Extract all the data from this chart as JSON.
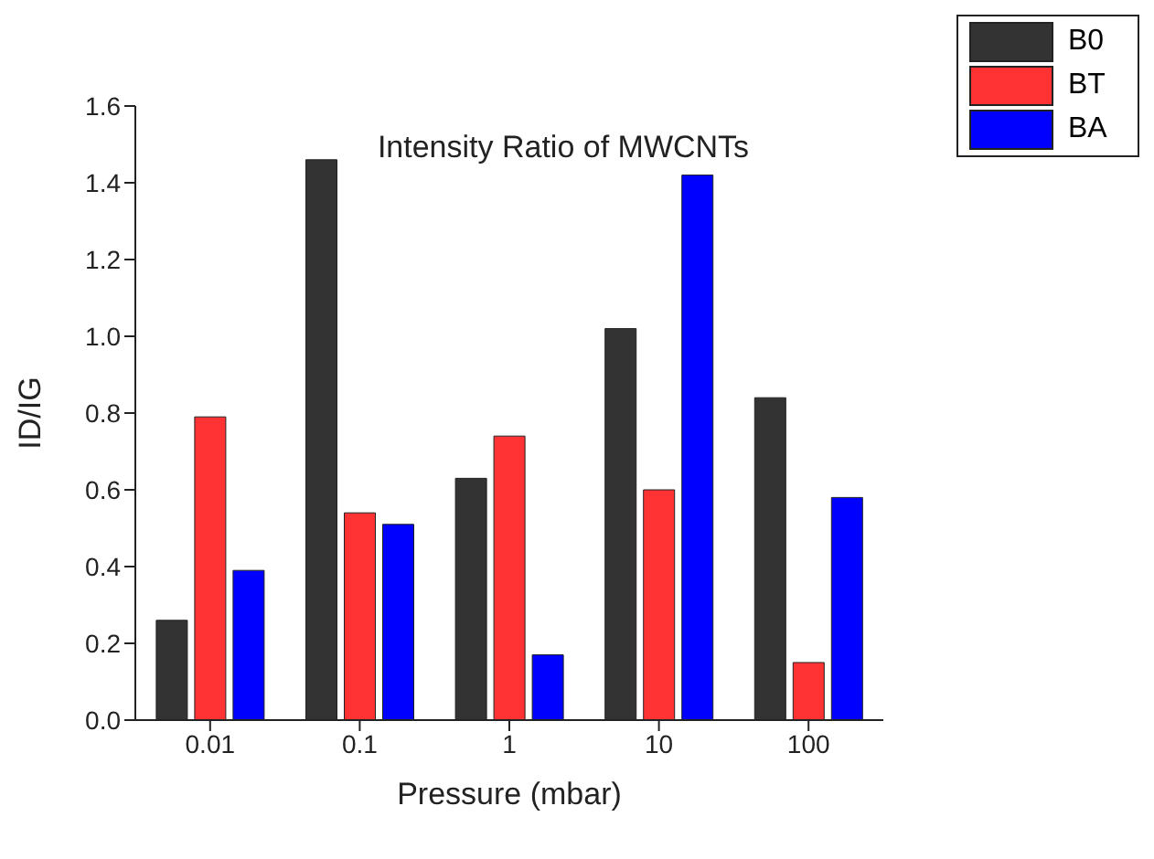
{
  "chart_data": {
    "type": "bar",
    "title": "Intensity Ratio of MWCNTs",
    "xlabel": "Pressure (mbar)",
    "ylabel": "ID/IG",
    "categories": [
      "0.01",
      "0.1",
      "1",
      "10",
      "100"
    ],
    "series": [
      {
        "name": "B0",
        "color": "#333333",
        "values": [
          0.26,
          1.46,
          0.63,
          1.02,
          0.84
        ]
      },
      {
        "name": "BT",
        "color": "#ff3333",
        "values": [
          0.79,
          0.54,
          0.74,
          0.6,
          0.15
        ]
      },
      {
        "name": "BA",
        "color": "#0000ff",
        "values": [
          0.39,
          0.51,
          0.17,
          1.42,
          0.58
        ]
      }
    ],
    "ylim": [
      0,
      1.6
    ],
    "yticks": [
      {
        "value": 0,
        "label": "0.0"
      },
      {
        "value": 0.2,
        "label": "0.2"
      },
      {
        "value": 0.4,
        "label": "0.4"
      },
      {
        "value": 0.6,
        "label": "0.6"
      },
      {
        "value": 0.8,
        "label": "0.8"
      },
      {
        "value": 1,
        "label": "1.0"
      },
      {
        "value": 1.2,
        "label": "1.2"
      },
      {
        "value": 1.4,
        "label": "1.4"
      },
      {
        "value": 1.6,
        "label": "1.6"
      }
    ],
    "grid": false,
    "legend": "top right"
  }
}
